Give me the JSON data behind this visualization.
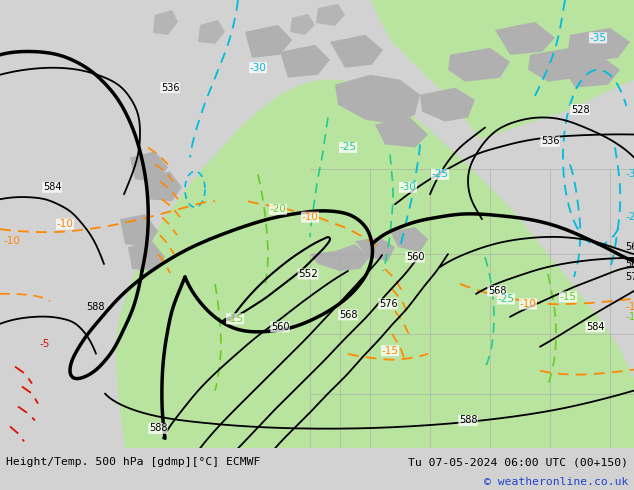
{
  "title_left": "Height/Temp. 500 hPa [gdmp][°C] ECMWF",
  "title_right": "Tu 07-05-2024 06:00 UTC (00+150)",
  "copyright": "© weatheronline.co.uk",
  "bg_gray": "#d2d2d2",
  "land_green": "#b8e4a0",
  "map_bg": "#d2d2d2",
  "figsize": [
    6.34,
    4.9
  ],
  "dpi": 100
}
